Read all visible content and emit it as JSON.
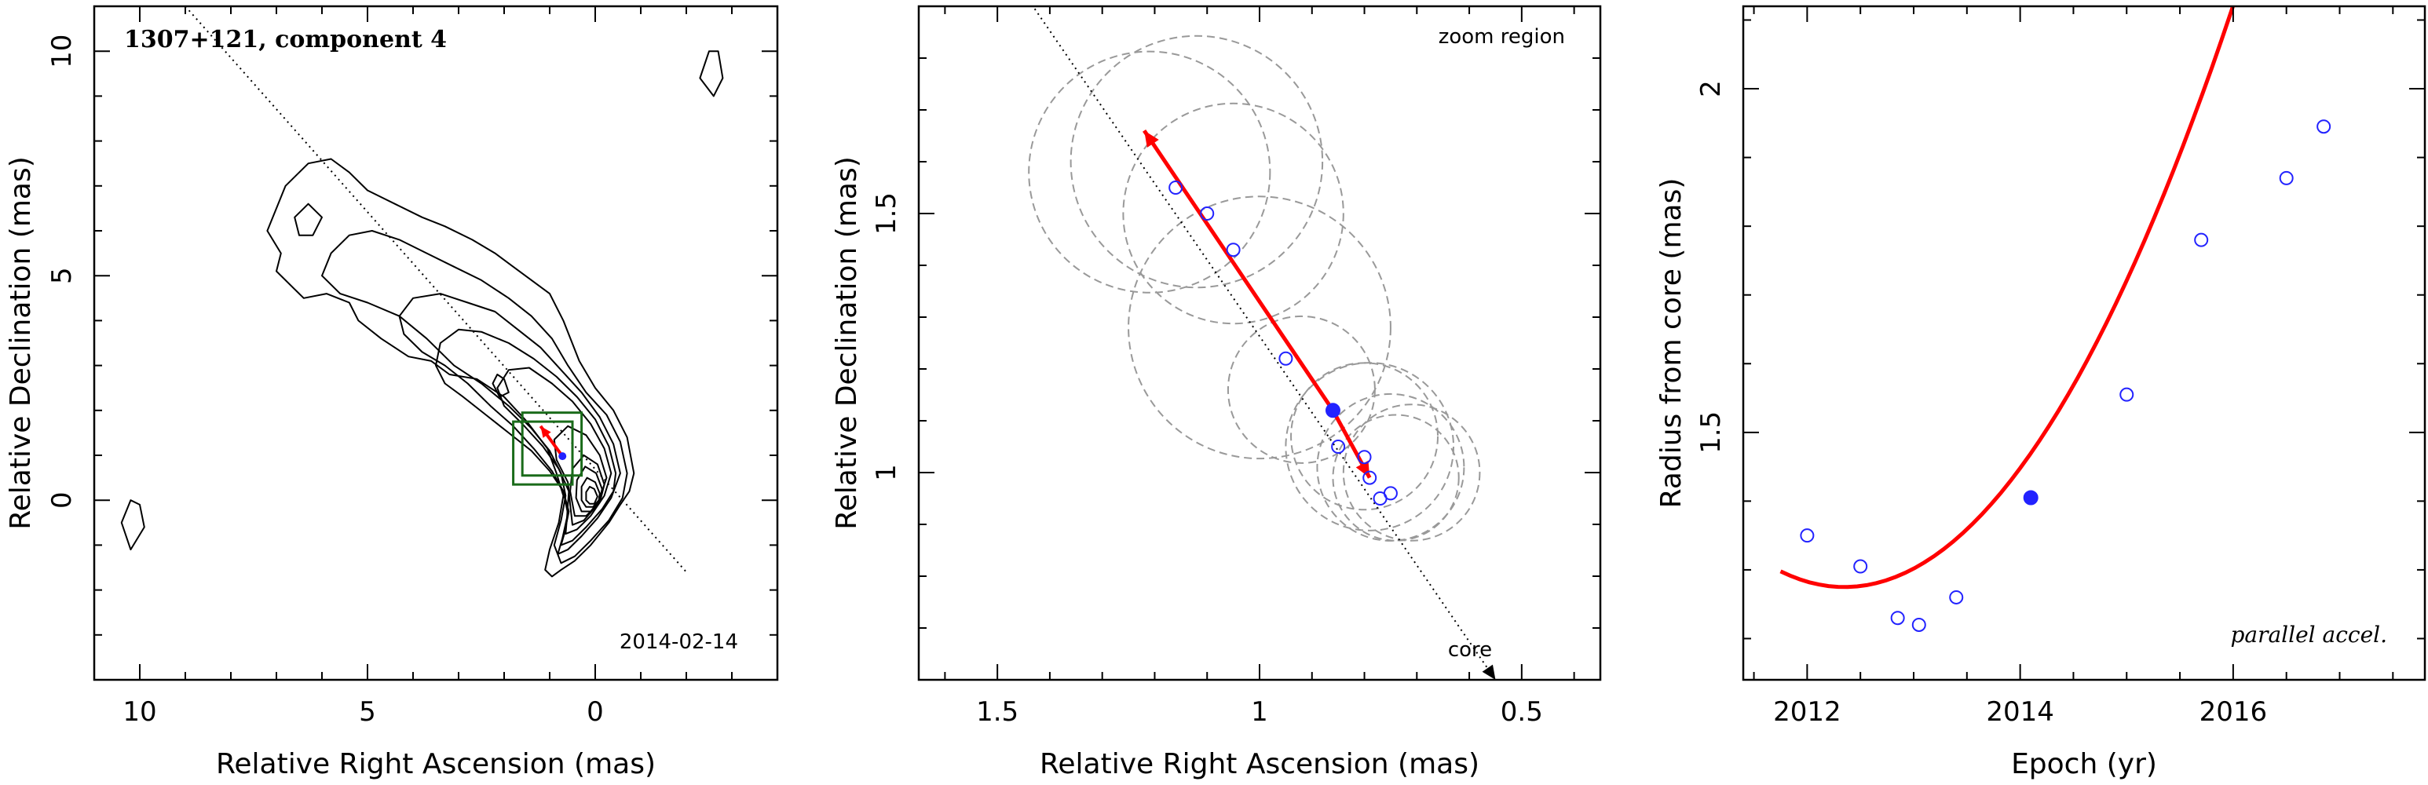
{
  "colors": {
    "axes": "#000000",
    "contour": "#000000",
    "box": "#1a6b1a",
    "arrow": "#ff0000",
    "point": "#2222ff",
    "circle": "#999999",
    "dotted": "#000000"
  },
  "chart_data": [
    {
      "type": "contour",
      "title": "1307+121, component 4",
      "date": "2014-02-14",
      "xlabel": "Relative Right Ascension (mas)",
      "ylabel": "Relative Declination (mas)",
      "xlim": [
        11,
        -4
      ],
      "ylim": [
        -4,
        11
      ],
      "xticks": [
        10,
        5,
        0
      ],
      "yticks": [
        0,
        5,
        10
      ],
      "jet_axis": [
        [
          9,
          11
        ],
        [
          -2,
          -1.6
        ]
      ],
      "component_arrow": {
        "from": [
          0.7,
          0.95
        ],
        "to": [
          1.2,
          1.65
        ]
      },
      "component_point": [
        0.72,
        0.98
      ],
      "zoom_boxes": [
        {
          "x": [
            0.3,
            1.6
          ],
          "y": [
            0.55,
            1.95
          ]
        },
        {
          "x": [
            0.5,
            1.8
          ],
          "y": [
            0.35,
            1.75
          ]
        }
      ],
      "contours": [
        {
          "x": [
            -0.85,
            -0.7,
            -0.4,
            0,
            0.35,
            0.7,
            1,
            1.4,
            1.8,
            2.2,
            2.7,
            3.3,
            3.8,
            4.4,
            5.0,
            5.4,
            5.8,
            6.3,
            6.8,
            7.2,
            6.9,
            7.0,
            6.6,
            6.4,
            5.9,
            5.4,
            5.2,
            4.7,
            4.1,
            3.6,
            3.2,
            2.6,
            2.0,
            1.5,
            1.05,
            0.85,
            0.7,
            0.8,
            1.0,
            1.1,
            0.95,
            0.75,
            0.45,
            0.1,
            -0.3,
            -0.55,
            -0.75,
            -0.85
          ],
          "y": [
            0.6,
            1.4,
            2.0,
            2.5,
            3.1,
            4.0,
            4.6,
            4.9,
            5.2,
            5.5,
            5.8,
            6.1,
            6.3,
            6.6,
            6.9,
            7.3,
            7.6,
            7.5,
            7.0,
            6.0,
            5.5,
            5.1,
            4.7,
            4.5,
            4.6,
            4.4,
            4.0,
            3.6,
            3.2,
            3.1,
            2.8,
            2.7,
            2.3,
            1.75,
            1.15,
            0.6,
            0.1,
            -0.5,
            -1.1,
            -1.55,
            -1.7,
            -1.55,
            -1.35,
            -1.0,
            -0.5,
            -0.1,
            0.2,
            0.6
          ]
        },
        {
          "x": [
            -0.7,
            -0.55,
            -0.25,
            0.2,
            0.6,
            0.95,
            1.4,
            1.9,
            2.5,
            3.1,
            3.7,
            4.3,
            4.9,
            5.4,
            5.8,
            6.0,
            5.6,
            5.0,
            4.3,
            3.7,
            3.1,
            2.5,
            1.9,
            1.4,
            1.0,
            0.75,
            0.65,
            0.75,
            0.9,
            0.75,
            0.45,
            0.1,
            -0.3,
            -0.6,
            -0.7
          ],
          "y": [
            0.6,
            1.3,
            1.9,
            2.4,
            3.0,
            3.6,
            4.1,
            4.5,
            4.9,
            5.2,
            5.5,
            5.8,
            6.0,
            5.9,
            5.5,
            5.0,
            4.6,
            4.4,
            4.1,
            3.6,
            3.0,
            2.6,
            2.1,
            1.6,
            1.1,
            0.6,
            0.1,
            -0.45,
            -1.0,
            -1.4,
            -1.25,
            -0.9,
            -0.45,
            0.05,
            0.6
          ]
        },
        {
          "x": [
            -0.55,
            -0.4,
            -0.1,
            0.3,
            0.75,
            1.2,
            1.7,
            2.2,
            2.8,
            3.4,
            4.0,
            4.3,
            4.2,
            3.8,
            3.3,
            2.8,
            2.3,
            1.8,
            1.35,
            0.95,
            0.7,
            0.6,
            0.72,
            0.82,
            0.6,
            0.3,
            -0.05,
            -0.35,
            -0.55
          ],
          "y": [
            0.6,
            1.25,
            1.85,
            2.4,
            2.9,
            3.4,
            3.8,
            4.2,
            4.4,
            4.6,
            4.5,
            4.1,
            3.7,
            3.3,
            3.0,
            2.6,
            2.1,
            1.65,
            1.15,
            0.65,
            0.2,
            -0.3,
            -0.85,
            -1.2,
            -1.1,
            -0.8,
            -0.4,
            0.05,
            0.6
          ]
        },
        {
          "x": [
            -0.45,
            -0.3,
            0.0,
            0.4,
            0.85,
            1.35,
            1.9,
            2.5,
            3.0,
            3.4,
            3.5,
            3.3,
            2.9,
            2.4,
            1.9,
            1.4,
            1.0,
            0.7,
            0.58,
            0.68,
            0.75,
            0.5,
            0.2,
            -0.15,
            -0.4,
            -0.45
          ],
          "y": [
            0.6,
            1.2,
            1.8,
            2.3,
            2.75,
            3.15,
            3.5,
            3.75,
            3.8,
            3.5,
            3.0,
            2.6,
            2.3,
            1.9,
            1.5,
            1.1,
            0.65,
            0.2,
            -0.25,
            -0.75,
            -1.0,
            -0.9,
            -0.6,
            -0.2,
            0.2,
            0.6
          ]
        },
        {
          "x": [
            -0.35,
            -0.2,
            0.1,
            0.5,
            0.95,
            1.45,
            1.9,
            2.15,
            2.0,
            1.6,
            1.15,
            0.8,
            0.58,
            0.62,
            0.65,
            0.4,
            0.1,
            -0.2,
            -0.35
          ],
          "y": [
            0.6,
            1.15,
            1.7,
            2.2,
            2.6,
            2.95,
            2.9,
            2.5,
            2.1,
            1.7,
            1.2,
            0.7,
            0.2,
            -0.4,
            -0.75,
            -0.65,
            -0.35,
            0.1,
            0.6
          ]
        },
        {
          "x": [
            -0.25,
            -0.1,
            0.2,
            0.6,
            0.9,
            0.85,
            0.6,
            0.55,
            0.5,
            0.25,
            -0.05,
            -0.25
          ],
          "y": [
            0.5,
            1.0,
            1.45,
            1.65,
            1.35,
            0.9,
            0.4,
            -0.1,
            -0.55,
            -0.45,
            -0.1,
            0.5
          ]
        },
        {
          "x": [
            -0.2,
            -0.05,
            0.25,
            0.5,
            0.55,
            0.45,
            0.2,
            -0.1,
            -0.2
          ],
          "y": [
            0.35,
            0.8,
            1.0,
            0.7,
            0.2,
            -0.35,
            -0.35,
            -0.05,
            0.35
          ]
        },
        {
          "x": [
            -0.15,
            -0.02,
            0.22,
            0.4,
            0.42,
            0.3,
            0.1,
            -0.1,
            -0.15
          ],
          "y": [
            0.25,
            0.6,
            0.75,
            0.45,
            0.05,
            -0.25,
            -0.25,
            0.0,
            0.25
          ]
        },
        {
          "x": [
            -0.1,
            0.0,
            0.18,
            0.3,
            0.3,
            0.2,
            0.05,
            -0.08,
            -0.1
          ],
          "y": [
            0.15,
            0.4,
            0.5,
            0.3,
            0.0,
            -0.15,
            -0.15,
            0.0,
            0.15
          ]
        },
        {
          "x": [
            -0.05,
            0.02,
            0.12,
            0.2,
            0.2,
            0.12,
            0.02,
            -0.05
          ],
          "y": [
            0.08,
            0.25,
            0.3,
            0.18,
            0.0,
            -0.08,
            -0.08,
            0.08
          ]
        },
        {
          "x": [
            6.3,
            6.6,
            6.5,
            6.2,
            6.0,
            6.3
          ],
          "y": [
            6.6,
            6.3,
            5.9,
            5.9,
            6.3,
            6.6
          ]
        },
        {
          "x": [
            2.15,
            2.25,
            2.1,
            1.9,
            2.0,
            2.15
          ],
          "y": [
            2.8,
            2.6,
            2.3,
            2.4,
            2.7,
            2.8
          ]
        },
        {
          "x": [
            10.2,
            10.4,
            10.2,
            9.9,
            10.0,
            10.2
          ],
          "y": [
            0.0,
            -0.5,
            -1.1,
            -0.6,
            -0.1,
            0.0
          ]
        },
        {
          "x": [
            -2.5,
            -2.3,
            -2.6,
            -2.8,
            -2.7,
            -2.5
          ],
          "y": [
            10.0,
            9.4,
            9.0,
            9.4,
            10.0,
            10.0
          ]
        }
      ]
    },
    {
      "type": "scatter",
      "annotation": "zoom region",
      "xlabel": "Relative Right Ascension (mas)",
      "ylabel": "Relative Declination (mas)",
      "xlim": [
        1.65,
        0.35
      ],
      "ylim": [
        0.6,
        1.9
      ],
      "xticks": [
        1.5,
        1,
        0.5
      ],
      "yticks": [
        1,
        1.5
      ],
      "core_label": "core",
      "points": [
        {
          "x": 1.16,
          "y": 1.55
        },
        {
          "x": 1.1,
          "y": 1.5
        },
        {
          "x": 1.05,
          "y": 1.43
        },
        {
          "x": 0.95,
          "y": 1.22
        },
        {
          "x": 0.85,
          "y": 1.05
        },
        {
          "x": 0.8,
          "y": 1.03
        },
        {
          "x": 0.79,
          "y": 0.99
        },
        {
          "x": 0.77,
          "y": 0.95
        },
        {
          "x": 0.75,
          "y": 0.96
        }
      ],
      "highlight_point": {
        "x": 0.86,
        "y": 1.12
      },
      "arrows": [
        {
          "from": [
            0.86,
            1.12
          ],
          "to": [
            1.22,
            1.66
          ]
        },
        {
          "from": [
            0.86,
            1.12
          ],
          "to": [
            0.79,
            0.99
          ]
        }
      ],
      "circles": [
        {
          "x": 1.21,
          "y": 1.58,
          "r": 0.23
        },
        {
          "x": 1.12,
          "y": 1.6,
          "r": 0.24
        },
        {
          "x": 1.05,
          "y": 1.5,
          "r": 0.21
        },
        {
          "x": 1.0,
          "y": 1.28,
          "r": 0.25
        },
        {
          "x": 0.92,
          "y": 1.16,
          "r": 0.14
        },
        {
          "x": 0.8,
          "y": 1.07,
          "r": 0.14
        },
        {
          "x": 0.79,
          "y": 1.05,
          "r": 0.16
        },
        {
          "x": 0.75,
          "y": 1.01,
          "r": 0.14
        },
        {
          "x": 0.74,
          "y": 0.99,
          "r": 0.12
        },
        {
          "x": 0.71,
          "y": 1.0,
          "r": 0.13
        }
      ],
      "jet_axis": [
        [
          1.5,
          2.0
        ],
        [
          0.55,
          0.6
        ]
      ]
    },
    {
      "type": "scatter",
      "annotation": "parallel accel.",
      "xlabel": "Epoch (yr)",
      "ylabel": "Radius from core (mas)",
      "xlim": [
        2011.4,
        2017.8
      ],
      "ylim": [
        1.14,
        2.12
      ],
      "xticks": [
        2012,
        2014,
        2016
      ],
      "yticks": [
        1.5,
        2
      ],
      "points": [
        {
          "x": 2012.0,
          "y": 1.35
        },
        {
          "x": 2012.5,
          "y": 1.305
        },
        {
          "x": 2012.85,
          "y": 1.23
        },
        {
          "x": 2013.05,
          "y": 1.22
        },
        {
          "x": 2013.4,
          "y": 1.26
        },
        {
          "x": 2015.0,
          "y": 1.555
        },
        {
          "x": 2015.7,
          "y": 1.78
        },
        {
          "x": 2016.5,
          "y": 1.87
        },
        {
          "x": 2016.85,
          "y": 1.945
        }
      ],
      "highlight_point": {
        "x": 2014.1,
        "y": 1.405
      },
      "fit_curve": {
        "x0": 2012.35,
        "y0": 1.275,
        "a": 0.0635,
        "x_start": 2011.75,
        "x_end": 2017.15
      }
    }
  ]
}
